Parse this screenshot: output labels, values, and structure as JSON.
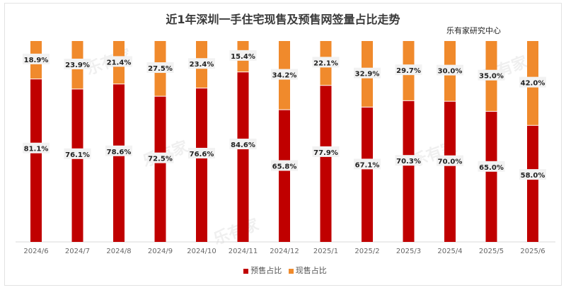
{
  "chart_data": {
    "type": "bar",
    "stacked": true,
    "title": "近1年深圳一手住宅现售及预售网签量占比走势",
    "source": "乐有家研究中心",
    "watermark": "乐有家",
    "categories": [
      "2024/6",
      "2024/7",
      "2024/8",
      "2024/9",
      "2024/10",
      "2024/11",
      "2024/12",
      "2025/1",
      "2025/2",
      "2025/3",
      "2025/4",
      "2025/5",
      "2025/6"
    ],
    "series": [
      {
        "name": "预售占比",
        "color": "#c00000",
        "values": [
          81.1,
          76.1,
          78.6,
          72.5,
          76.6,
          84.6,
          65.8,
          77.9,
          67.1,
          70.3,
          70.0,
          65.0,
          58.0
        ],
        "labels": [
          "81.1%",
          "76.1%",
          "78.6%",
          "72.5%",
          "76.6%",
          "84.6%",
          "65.8%",
          "77.9%",
          "67.1%",
          "70.3%",
          "70.0%",
          "65.0%",
          "58.0%"
        ]
      },
      {
        "name": "现售占比",
        "color": "#f08a2c",
        "values": [
          18.9,
          23.9,
          21.4,
          27.5,
          23.4,
          15.4,
          34.2,
          22.1,
          32.9,
          29.7,
          30.0,
          35.0,
          42.0
        ],
        "labels": [
          "18.9%",
          "23.9%",
          "21.4%",
          "27.5%",
          "23.4%",
          "15.4%",
          "34.2%",
          "22.1%",
          "32.9%",
          "29.7%",
          "30.0%",
          "35.0%",
          "42.0%"
        ]
      }
    ],
    "xlabel": "",
    "ylabel": "",
    "ylim": [
      0,
      100
    ],
    "grid": false,
    "legend": "bottom"
  }
}
